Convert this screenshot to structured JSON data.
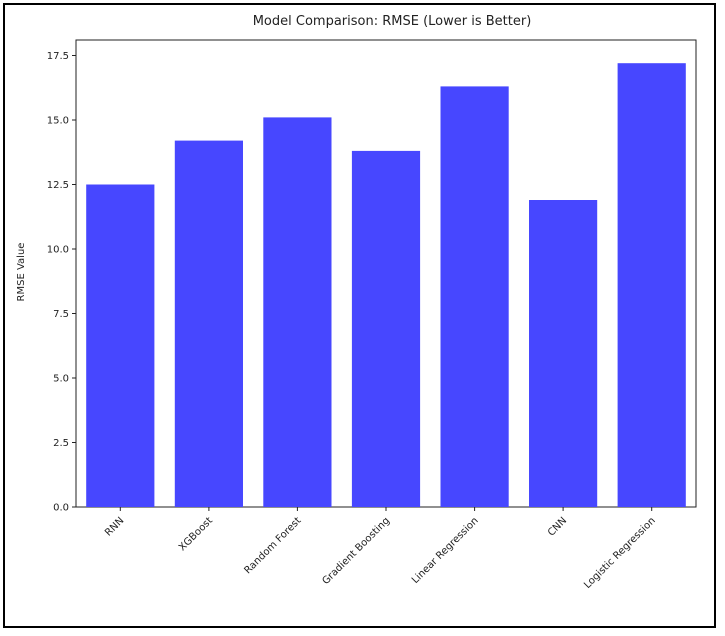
{
  "chart_data": {
    "type": "bar",
    "title": "Model Comparison: RMSE (Lower is Better)",
    "xlabel": "",
    "ylabel": "RMSE Value",
    "categories": [
      "RNN",
      "XGBoost",
      "Random Forest",
      "Gradient Boosting",
      "Linear Regression",
      "CNN",
      "Logistic Regression"
    ],
    "values": [
      12.5,
      14.2,
      15.1,
      13.8,
      16.3,
      11.9,
      17.2
    ],
    "ylim": [
      0,
      18.1
    ],
    "yticks": [
      "0.0",
      "2.5",
      "5.0",
      "7.5",
      "10.0",
      "12.5",
      "15.0",
      "17.5"
    ],
    "ytick_values": [
      0,
      2.5,
      5,
      7.5,
      10,
      12.5,
      15,
      17.5
    ],
    "bar_color": "#4747ff",
    "grid": false,
    "legend": "none"
  }
}
